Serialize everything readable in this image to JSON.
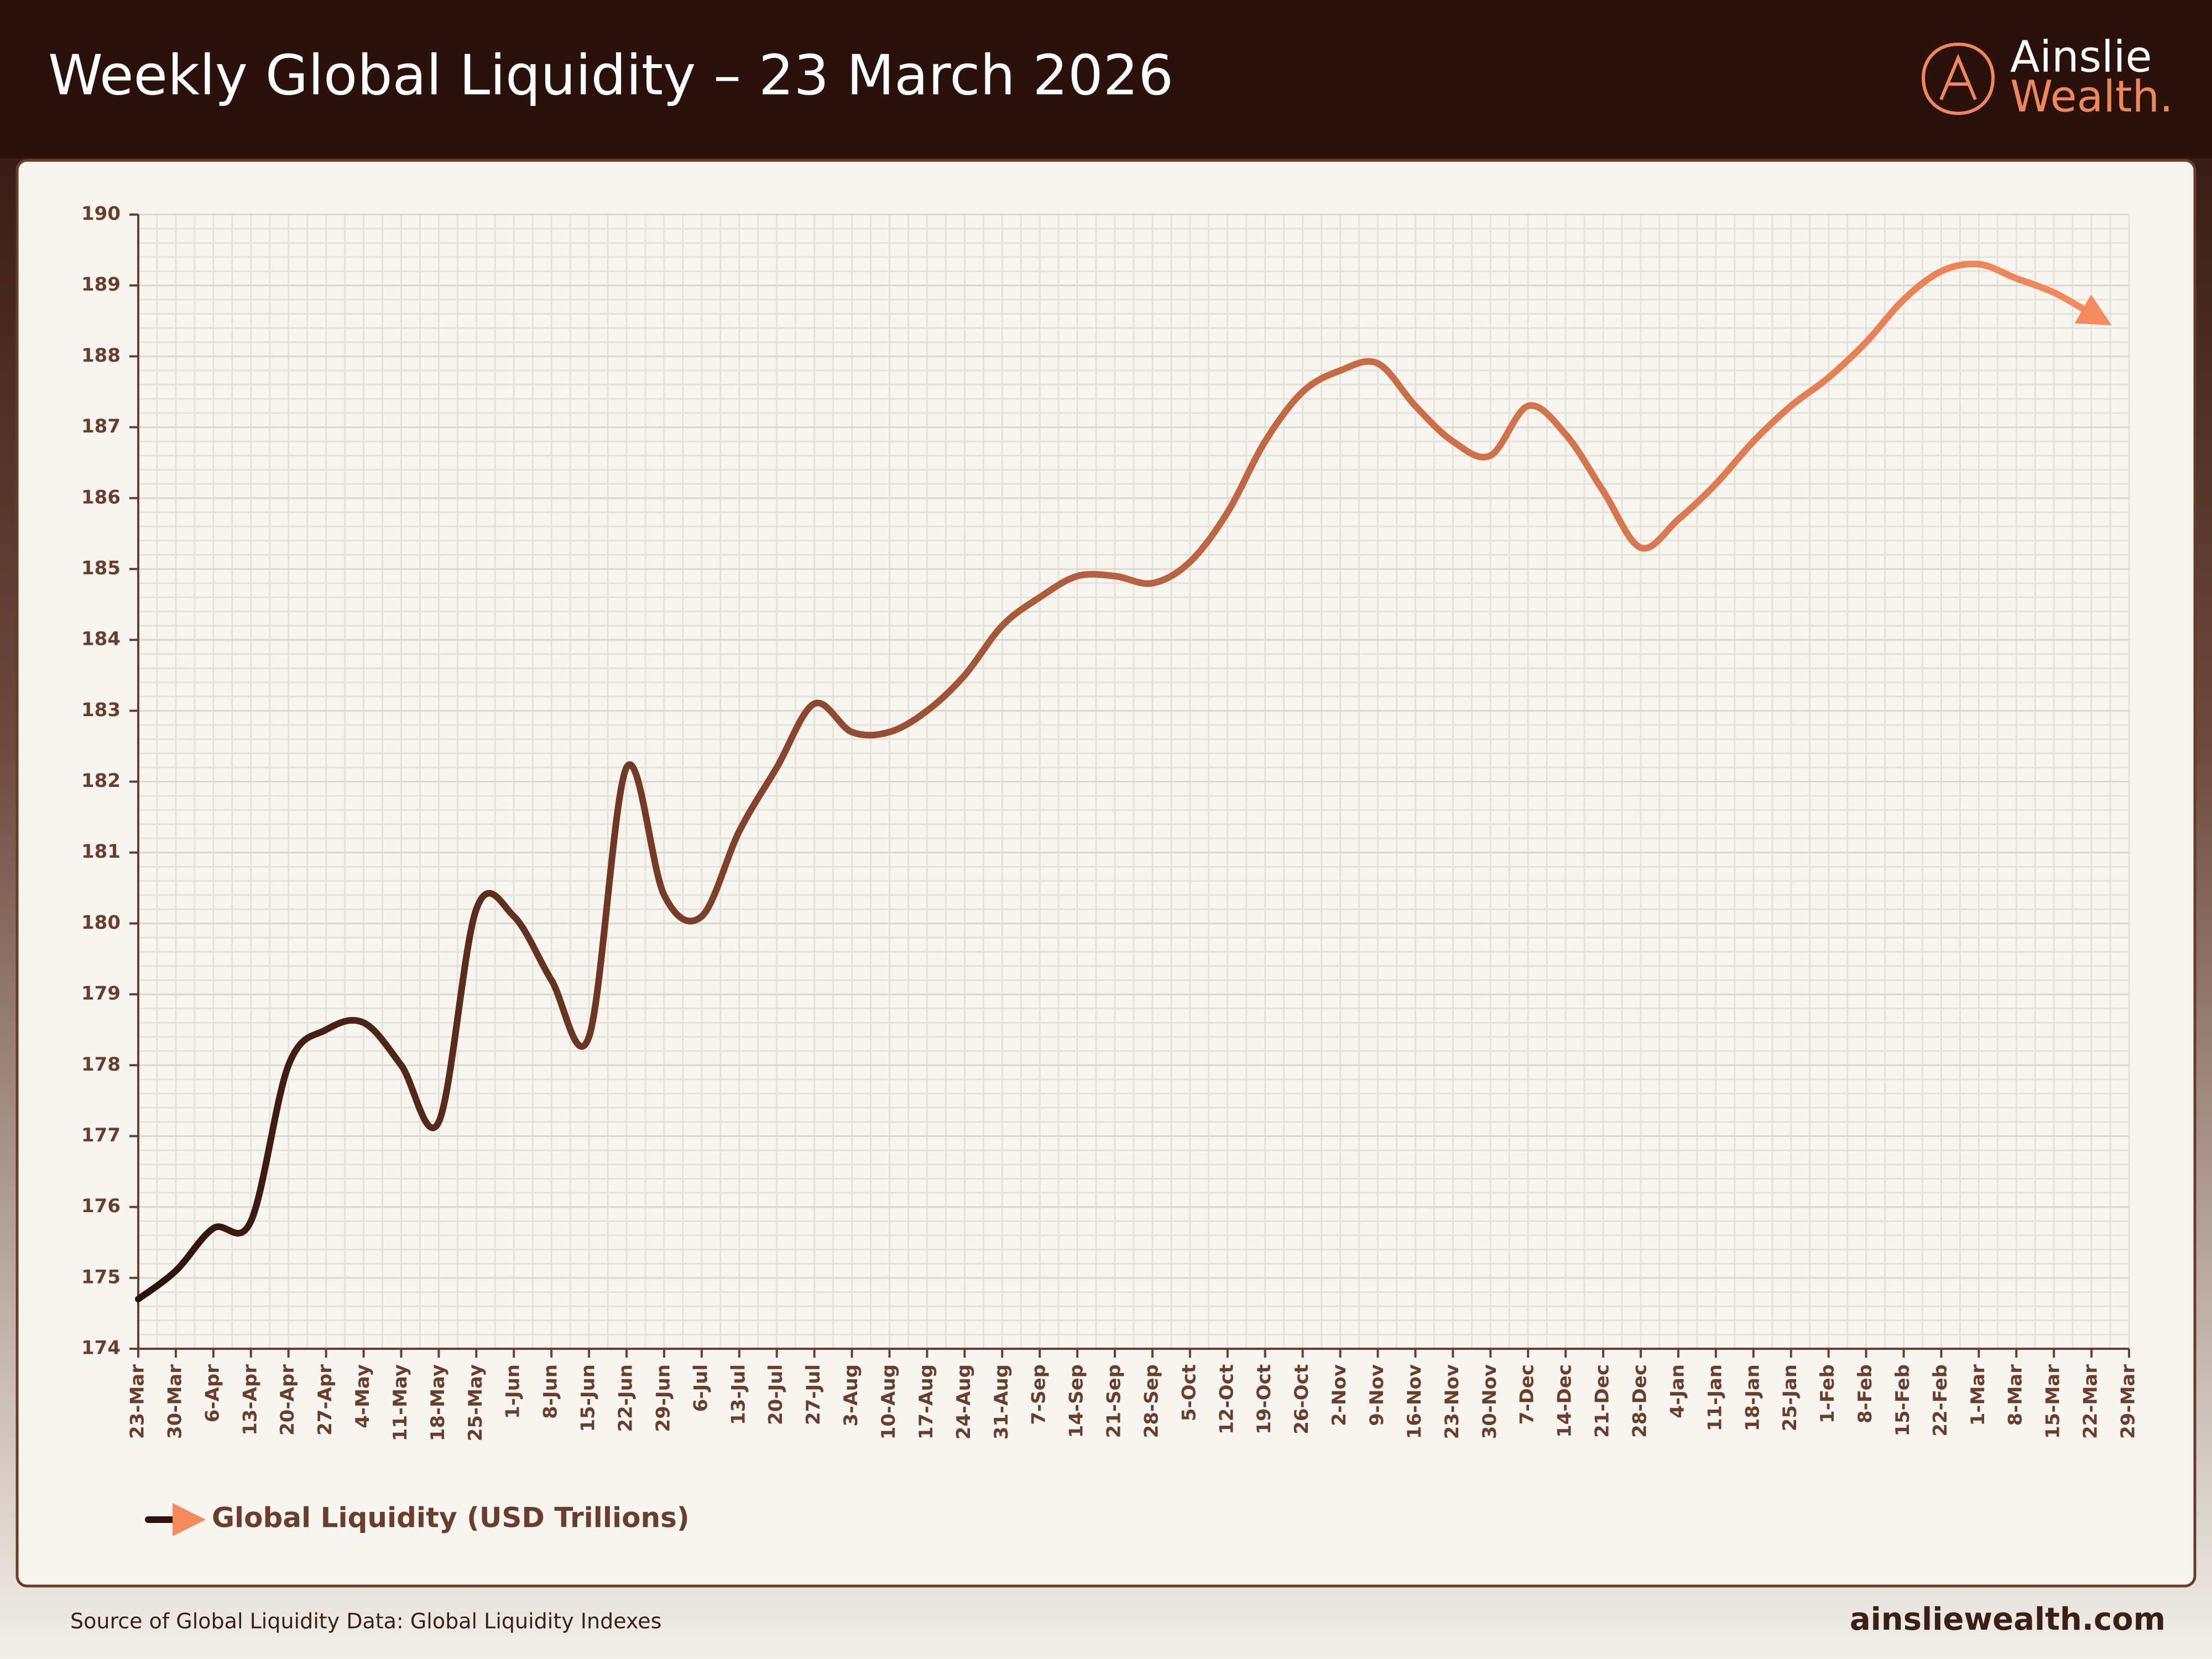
{
  "chart_data": {
    "type": "line",
    "title": "Weekly Global Liquidity – 23 March 2026",
    "categories": [
      "23-Mar",
      "30-Mar",
      "6-Apr",
      "13-Apr",
      "20-Apr",
      "27-Apr",
      "4-May",
      "11-May",
      "18-May",
      "25-May",
      "1-Jun",
      "8-Jun",
      "15-Jun",
      "22-Jun",
      "29-Jun",
      "6-Jul",
      "13-Jul",
      "20-Jul",
      "27-Jul",
      "3-Aug",
      "10-Aug",
      "17-Aug",
      "24-Aug",
      "31-Aug",
      "7-Sep",
      "14-Sep",
      "21-Sep",
      "28-Sep",
      "5-Oct",
      "12-Oct",
      "19-Oct",
      "26-Oct",
      "2-Nov",
      "9-Nov",
      "16-Nov",
      "23-Nov",
      "30-Nov",
      "7-Dec",
      "14-Dec",
      "21-Dec",
      "28-Dec",
      "4-Jan",
      "11-Jan",
      "18-Jan",
      "25-Jan",
      "1-Feb",
      "8-Feb",
      "15-Feb",
      "22-Feb",
      "1-Mar",
      "8-Mar",
      "15-Mar",
      "22-Mar",
      "29-Mar"
    ],
    "series": [
      {
        "name": "Global Liquidity (USD Trillions)",
        "color": [
          "#2b110b",
          "#b8613f",
          "#f58a5c"
        ],
        "values": [
          174.7,
          175.1,
          175.7,
          175.8,
          178.0,
          178.5,
          178.6,
          178.0,
          177.2,
          180.2,
          180.1,
          179.2,
          178.4,
          182.2,
          180.4,
          180.1,
          181.3,
          182.2,
          183.1,
          182.7,
          182.7,
          183.0,
          183.5,
          184.2,
          184.6,
          184.9,
          184.9,
          184.8,
          185.1,
          185.8,
          186.8,
          187.5,
          187.8,
          187.9,
          187.3,
          186.8,
          186.6,
          187.3,
          186.9,
          186.1,
          185.3,
          185.7,
          186.2,
          186.8,
          187.3,
          187.7,
          188.2,
          188.8,
          189.2,
          189.3,
          189.1,
          188.9,
          188.6,
          null
        ]
      }
    ],
    "ylim": [
      174,
      190
    ],
    "yticks": [
      174,
      175,
      176,
      177,
      178,
      179,
      180,
      181,
      182,
      183,
      184,
      185,
      186,
      187,
      188,
      189,
      190
    ],
    "grid": true,
    "legend": "bottom-left"
  },
  "logo": {
    "line1": "Ainslie",
    "line2": "Wealth."
  },
  "footer": {
    "source": "Source of Global Liquidity Data: Global Liquidity Indexes",
    "website": "ainsliewealth.com"
  }
}
